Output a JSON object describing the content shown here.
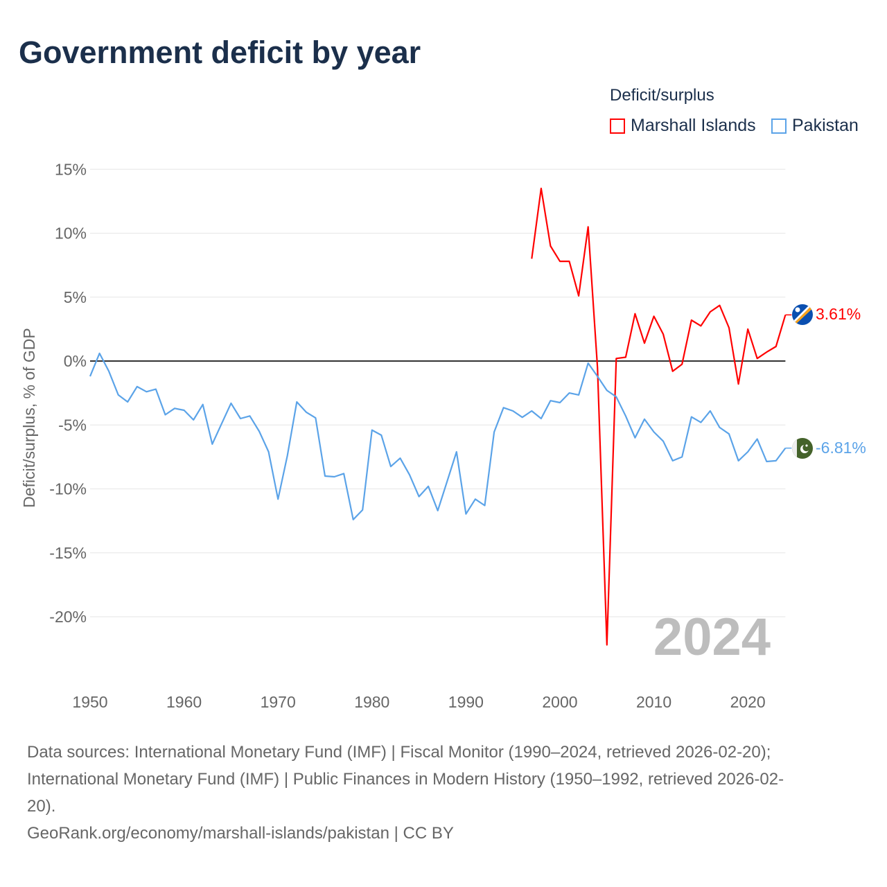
{
  "title": "Government deficit by year",
  "legend": {
    "title": "Deficit/surplus",
    "items": [
      {
        "name": "Marshall Islands",
        "color": "#ff0000"
      },
      {
        "name": "Pakistan",
        "color": "#5ba3e8"
      }
    ]
  },
  "year_watermark": "2024",
  "footer": {
    "line1": "Data sources: International Monetary Fund (IMF) | Fiscal Monitor (1990–2024, retrieved 2026-02-20);",
    "line2": "International Monetary Fund (IMF) | Public Finances in Modern History (1950–1992, retrieved 2026-02-",
    "line3": "20).",
    "line4": "GeoRank.org/economy/marshall-islands/pakistan | CC BY"
  },
  "chart_data": {
    "type": "line",
    "title": "Government deficit by year",
    "xlabel": "",
    "ylabel": "Deficit/surplus, % of GDP",
    "xlim": [
      1950,
      2024
    ],
    "ylim": [
      -24,
      16
    ],
    "x_ticks": [
      1950,
      1960,
      1970,
      1980,
      1990,
      2000,
      2010,
      2020
    ],
    "y_ticks": [
      15,
      10,
      5,
      0,
      -5,
      -10,
      -15,
      -20
    ],
    "y_tick_labels": [
      "15%",
      "10%",
      "5%",
      "0%",
      "-5%",
      "-10%",
      "-15%",
      "-20%"
    ],
    "grid": true,
    "legend_position": "top-right",
    "series": [
      {
        "name": "Marshall Islands",
        "color": "#ff0000",
        "end_label": "3.61%",
        "start_year": 1997,
        "values": [
          8.0,
          13.5,
          9.0,
          7.8,
          7.8,
          5.1,
          10.5,
          -0.5,
          -22.2,
          0.2,
          0.3,
          3.7,
          1.4,
          3.5,
          2.1,
          -0.8,
          -0.25,
          3.2,
          2.75,
          3.85,
          4.35,
          2.6,
          -1.8,
          2.5,
          0.2,
          0.7,
          1.14,
          3.61
        ]
      },
      {
        "name": "Pakistan",
        "color": "#5ba3e8",
        "end_label": "-6.81%",
        "start_year": 1950,
        "values": [
          -1.2,
          0.6,
          -0.8,
          -2.65,
          -3.2,
          -2.0,
          -2.4,
          -2.2,
          -4.2,
          -3.7,
          -3.85,
          -4.6,
          -3.4,
          -6.5,
          -4.9,
          -3.3,
          -4.5,
          -4.3,
          -5.5,
          -7.1,
          -10.8,
          -7.4,
          -3.2,
          -4.0,
          -4.45,
          -9.0,
          -9.05,
          -8.8,
          -12.4,
          -11.65,
          -5.4,
          -5.8,
          -8.25,
          -7.6,
          -8.9,
          -10.6,
          -9.8,
          -11.7,
          -9.4,
          -7.1,
          -11.96,
          -10.8,
          -11.3,
          -5.55,
          -3.65,
          -3.9,
          -4.4,
          -3.9,
          -4.5,
          -3.1,
          -3.25,
          -2.5,
          -2.65,
          -0.16,
          -1.2,
          -2.3,
          -2.8,
          -4.3,
          -6.0,
          -4.55,
          -5.55,
          -6.27,
          -7.8,
          -7.5,
          -4.37,
          -4.8,
          -3.9,
          -5.2,
          -5.7,
          -7.8,
          -7.1,
          -6.1,
          -7.86,
          -7.8,
          -6.81
        ]
      }
    ]
  }
}
